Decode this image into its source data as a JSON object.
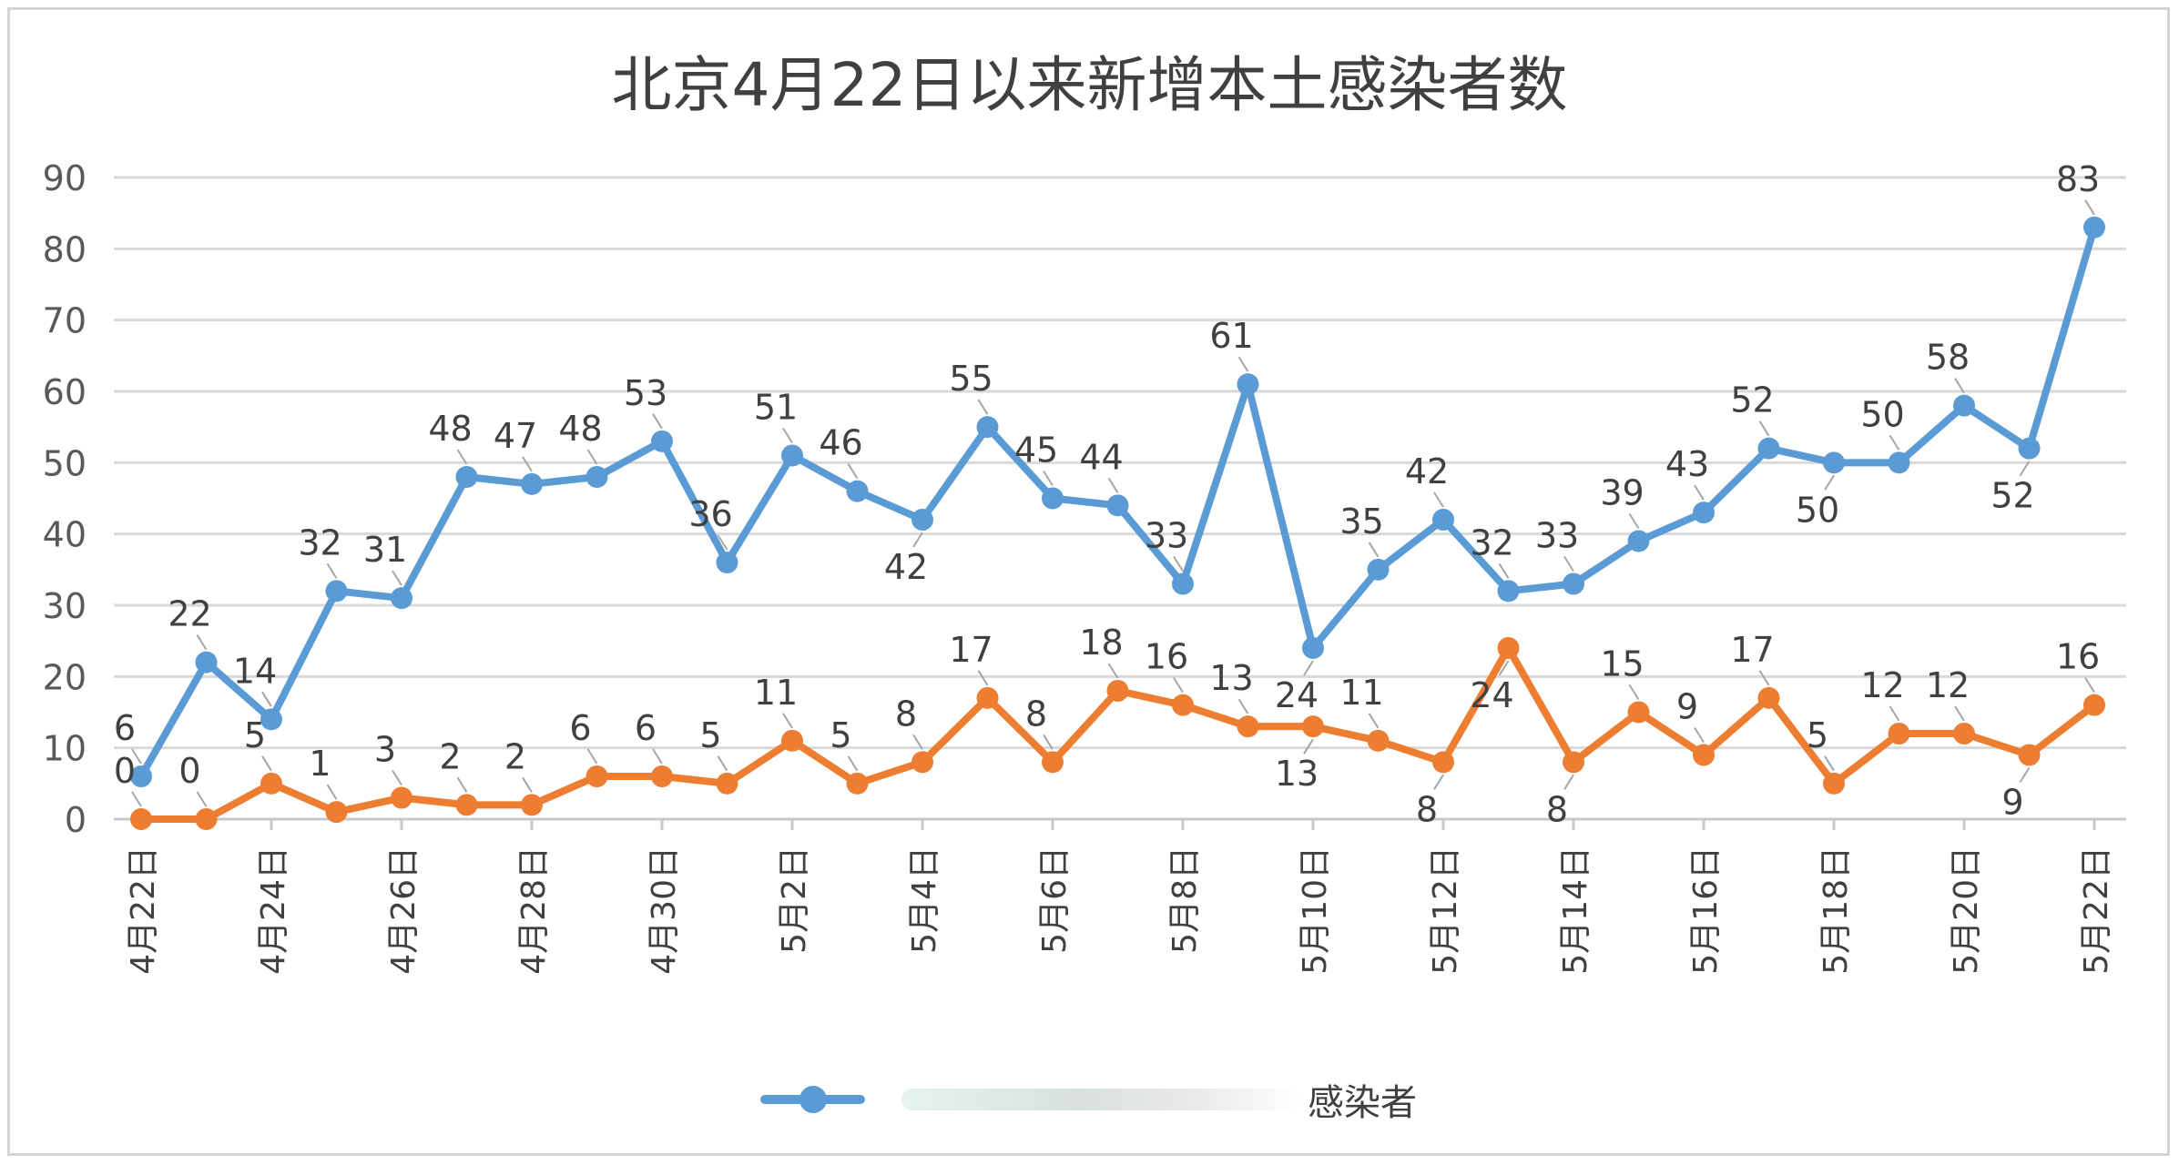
{
  "chart_data": {
    "type": "line",
    "title": "北京4月22日以来新增本土感染者数",
    "ylim": [
      0,
      90
    ],
    "yticks": [
      0,
      10,
      20,
      30,
      40,
      50,
      60,
      70,
      80,
      90
    ],
    "grid": true,
    "legend_placement": "bottom-center",
    "x": [
      "4月22日",
      "4月23日",
      "4月24日",
      "4月25日",
      "4月26日",
      "4月27日",
      "4月28日",
      "4月29日",
      "4月30日",
      "5月1日",
      "5月2日",
      "5月3日",
      "5月4日",
      "5月5日",
      "5月6日",
      "5月7日",
      "5月8日",
      "5月9日",
      "5月10日",
      "5月11日",
      "5月12日",
      "5月13日",
      "5月14日",
      "5月15日",
      "5月16日",
      "5月17日",
      "5月18日",
      "5月19日",
      "5月20日",
      "5月21日",
      "5月22日"
    ],
    "x_tick_labels": [
      "4月22日",
      "4月24日",
      "4月26日",
      "4月28日",
      "4月30日",
      "5月2日",
      "5月4日",
      "5月6日",
      "5月8日",
      "5月10日",
      "5月12日",
      "5月14日",
      "5月16日",
      "5月18日",
      "5月20日",
      "5月22日"
    ],
    "series": [
      {
        "name": "感染者",
        "color": "#5b9bd5",
        "values": [
          6,
          22,
          14,
          32,
          31,
          48,
          47,
          48,
          53,
          36,
          51,
          46,
          42,
          55,
          45,
          44,
          33,
          61,
          24,
          35,
          42,
          32,
          33,
          39,
          43,
          52,
          50,
          50,
          58,
          52,
          83
        ]
      },
      {
        "color": "#ed7d31",
        "values": [
          0,
          0,
          5,
          1,
          3,
          2,
          2,
          6,
          6,
          5,
          11,
          5,
          8,
          17,
          8,
          18,
          16,
          13,
          13,
          11,
          8,
          24,
          8,
          15,
          9,
          17,
          5,
          12,
          12,
          9,
          16
        ]
      }
    ]
  }
}
